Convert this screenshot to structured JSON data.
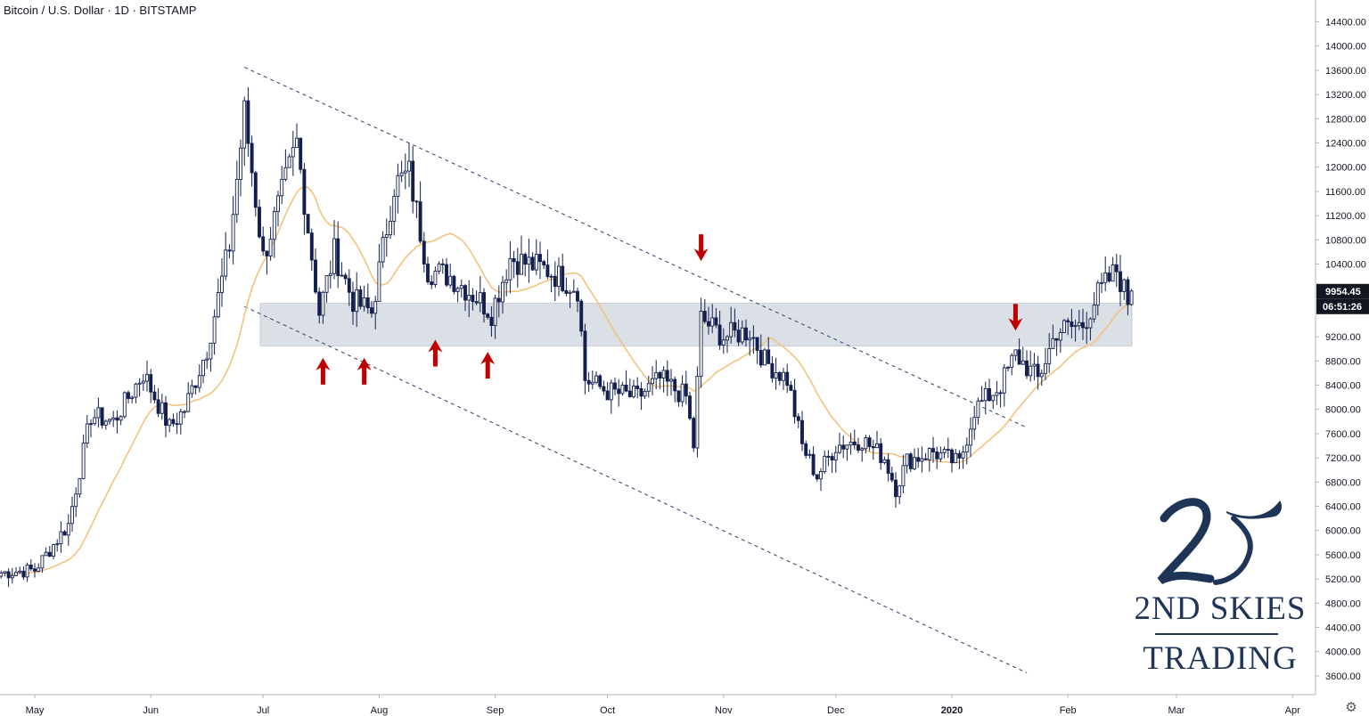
{
  "header": {
    "symbol_line": "Bitcoin / U.S. Dollar · 1D · BITSTAMP"
  },
  "price_axis": {
    "ticks": [
      "14400.00",
      "14000.00",
      "13600.00",
      "13200.00",
      "12800.00",
      "12400.00",
      "12000.00",
      "11600.00",
      "11200.00",
      "10800.00",
      "10400.00",
      "9200.00",
      "8800.00",
      "8400.00",
      "8000.00",
      "7600.00",
      "7200.00",
      "6800.00",
      "6400.00",
      "6000.00",
      "5600.00",
      "5200.00",
      "4800.00",
      "4400.00",
      "4000.00",
      "3600.00"
    ],
    "last_price_label": "9954.45",
    "countdown_label": "06:51:26",
    "label_color": "#131722"
  },
  "time_axis": {
    "labels": [
      "May",
      "Jun",
      "Jul",
      "Aug",
      "Sep",
      "Oct",
      "Nov",
      "Dec",
      "2020",
      "Feb",
      "Mar",
      "Apr"
    ]
  },
  "logo": {
    "line1": "2ND SKIES",
    "line2": "TRADING",
    "color": "#1f3557"
  },
  "icons": {
    "settings": "gear-icon",
    "arrows": "arrow-icon"
  },
  "chart_data": {
    "type": "candlestick",
    "title": "Bitcoin / U.S. Dollar · 1D · BITSTAMP",
    "ylim": [
      3450,
      14700
    ],
    "colors": {
      "candle": "#131f4f",
      "moving_average": "#f3c37c",
      "zone": "#d5d9e2",
      "trendline": "#3d4d7a",
      "arrow": "#c00000",
      "last_price_badge": "#131722"
    },
    "price_path": [
      {
        "date": "2019-04-22",
        "price": 5300
      },
      {
        "date": "2019-05-01",
        "price": 5350
      },
      {
        "date": "2019-05-10",
        "price": 6100
      },
      {
        "date": "2019-05-16",
        "price": 7900
      },
      {
        "date": "2019-05-22",
        "price": 7800
      },
      {
        "date": "2019-05-30",
        "price": 8600
      },
      {
        "date": "2019-06-06",
        "price": 7700
      },
      {
        "date": "2019-06-10",
        "price": 8000
      },
      {
        "date": "2019-06-16",
        "price": 9000
      },
      {
        "date": "2019-06-22",
        "price": 10700
      },
      {
        "date": "2019-06-26",
        "price": 12900
      },
      {
        "date": "2019-07-01",
        "price": 10500
      },
      {
        "date": "2019-07-10",
        "price": 12400
      },
      {
        "date": "2019-07-16",
        "price": 9600
      },
      {
        "date": "2019-07-20",
        "price": 10600
      },
      {
        "date": "2019-07-25",
        "price": 9800
      },
      {
        "date": "2019-07-30",
        "price": 9600
      },
      {
        "date": "2019-08-05",
        "price": 11700
      },
      {
        "date": "2019-08-09",
        "price": 11900
      },
      {
        "date": "2019-08-14",
        "price": 10300
      },
      {
        "date": "2019-08-20",
        "price": 10200
      },
      {
        "date": "2019-08-28",
        "price": 9800
      },
      {
        "date": "2019-08-31",
        "price": 9600
      },
      {
        "date": "2019-09-05",
        "price": 10500
      },
      {
        "date": "2019-09-15",
        "price": 10300
      },
      {
        "date": "2019-09-23",
        "price": 10000
      },
      {
        "date": "2019-09-25",
        "price": 8500
      },
      {
        "date": "2019-10-01",
        "price": 8300
      },
      {
        "date": "2019-10-09",
        "price": 8200
      },
      {
        "date": "2019-10-15",
        "price": 8500
      },
      {
        "date": "2019-10-22",
        "price": 8200
      },
      {
        "date": "2019-10-24",
        "price": 7400
      },
      {
        "date": "2019-10-26",
        "price": 9500
      },
      {
        "date": "2019-11-01",
        "price": 9200
      },
      {
        "date": "2019-11-08",
        "price": 9300
      },
      {
        "date": "2019-11-12",
        "price": 8800
      },
      {
        "date": "2019-11-18",
        "price": 8500
      },
      {
        "date": "2019-11-22",
        "price": 7400
      },
      {
        "date": "2019-11-26",
        "price": 6900
      },
      {
        "date": "2019-12-01",
        "price": 7400
      },
      {
        "date": "2019-12-08",
        "price": 7500
      },
      {
        "date": "2019-12-14",
        "price": 7200
      },
      {
        "date": "2019-12-17",
        "price": 6700
      },
      {
        "date": "2019-12-20",
        "price": 7150
      },
      {
        "date": "2019-12-27",
        "price": 7300
      },
      {
        "date": "2020-01-03",
        "price": 7100
      },
      {
        "date": "2020-01-07",
        "price": 8000
      },
      {
        "date": "2020-01-14",
        "price": 8400
      },
      {
        "date": "2020-01-18",
        "price": 8900
      },
      {
        "date": "2020-01-24",
        "price": 8500
      },
      {
        "date": "2020-01-29",
        "price": 9300
      },
      {
        "date": "2020-02-05",
        "price": 9400
      },
      {
        "date": "2020-02-09",
        "price": 9900
      },
      {
        "date": "2020-02-14",
        "price": 10300
      },
      {
        "date": "2020-02-17",
        "price": 9800
      },
      {
        "date": "2020-02-18",
        "price": 9954.45
      }
    ],
    "zone": {
      "from": 9050,
      "to": 9750
    },
    "trendlines": [
      {
        "name": "upper",
        "from": {
          "date": "2019-06-26",
          "price": 13650
        },
        "to": {
          "date": "2020-01-21",
          "price": 7700
        }
      },
      {
        "name": "lower",
        "from": {
          "date": "2019-06-26",
          "price": 9700
        },
        "to": {
          "date": "2020-01-21",
          "price": 3650
        }
      }
    ],
    "arrows": [
      {
        "date": "2019-07-17",
        "price": 8850,
        "direction": "up"
      },
      {
        "date": "2019-07-28",
        "price": 8850,
        "direction": "up"
      },
      {
        "date": "2019-08-16",
        "price": 9150,
        "direction": "up"
      },
      {
        "date": "2019-08-30",
        "price": 8950,
        "direction": "up"
      },
      {
        "date": "2019-10-26",
        "price": 10450,
        "direction": "down"
      },
      {
        "date": "2020-01-18",
        "price": 9300,
        "direction": "down"
      }
    ]
  }
}
